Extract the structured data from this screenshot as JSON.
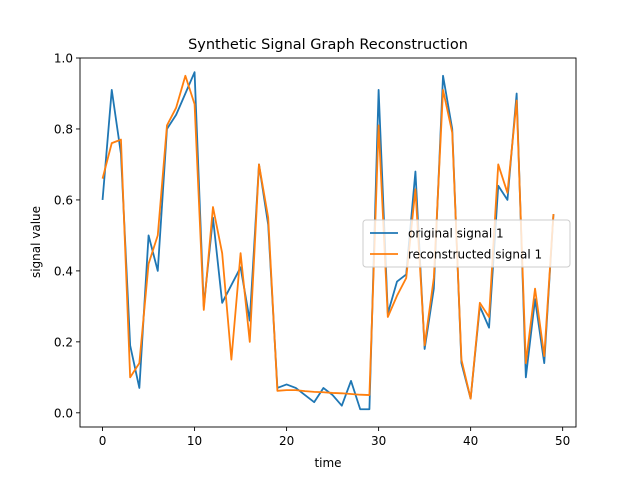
{
  "chart_data": {
    "type": "line",
    "title": "Synthetic Signal Graph Reconstruction",
    "xlabel": "time",
    "ylabel": "signal value",
    "xlim": [
      -2.45,
      51.45
    ],
    "ylim": [
      -0.04,
      1.0
    ],
    "xticks": [
      0,
      10,
      20,
      30,
      40,
      50
    ],
    "xtick_labels": [
      "0",
      "10",
      "20",
      "30",
      "40",
      "50"
    ],
    "yticks": [
      0.0,
      0.2,
      0.4,
      0.6,
      0.8,
      1.0
    ],
    "ytick_labels": [
      "0.0",
      "0.2",
      "0.4",
      "0.6",
      "0.8",
      "1.0"
    ],
    "grid": false,
    "legend_position": "center-right",
    "x": [
      0,
      1,
      2,
      3,
      4,
      5,
      6,
      7,
      8,
      9,
      10,
      11,
      12,
      13,
      14,
      15,
      16,
      17,
      18,
      19,
      20,
      21,
      22,
      23,
      24,
      25,
      26,
      27,
      28,
      29,
      30,
      31,
      32,
      33,
      34,
      35,
      36,
      37,
      38,
      39,
      40,
      41,
      42,
      43,
      44,
      45,
      46,
      47,
      48,
      49
    ],
    "series": [
      {
        "name": "original signal 1",
        "color": "#1f77b4",
        "values": [
          0.6,
          0.91,
          0.73,
          0.19,
          0.07,
          0.5,
          0.4,
          0.8,
          0.84,
          0.9,
          0.96,
          0.3,
          0.55,
          0.31,
          0.36,
          0.41,
          0.26,
          0.7,
          0.53,
          0.07,
          0.08,
          0.07,
          0.05,
          0.03,
          0.07,
          0.05,
          0.02,
          0.09,
          0.01,
          0.01,
          0.91,
          0.28,
          0.37,
          0.39,
          0.68,
          0.18,
          0.35,
          0.95,
          0.8,
          0.14,
          0.04,
          0.3,
          0.24,
          0.64,
          0.6,
          0.9,
          0.1,
          0.32,
          0.14,
          0.56
        ]
      },
      {
        "name": "reconstructed signal 1",
        "color": "#ff7f0e",
        "values": [
          0.66,
          0.76,
          0.77,
          0.1,
          0.14,
          0.42,
          0.5,
          0.81,
          0.86,
          0.95,
          0.87,
          0.29,
          0.58,
          0.45,
          0.15,
          0.45,
          0.2,
          0.7,
          0.55,
          0.062,
          0.064,
          0.064,
          0.061,
          0.059,
          0.058,
          0.056,
          0.055,
          0.053,
          0.051,
          0.05,
          0.81,
          0.27,
          0.33,
          0.38,
          0.63,
          0.19,
          0.38,
          0.91,
          0.79,
          0.15,
          0.04,
          0.31,
          0.27,
          0.7,
          0.62,
          0.88,
          0.14,
          0.35,
          0.16,
          0.56
        ]
      }
    ]
  }
}
